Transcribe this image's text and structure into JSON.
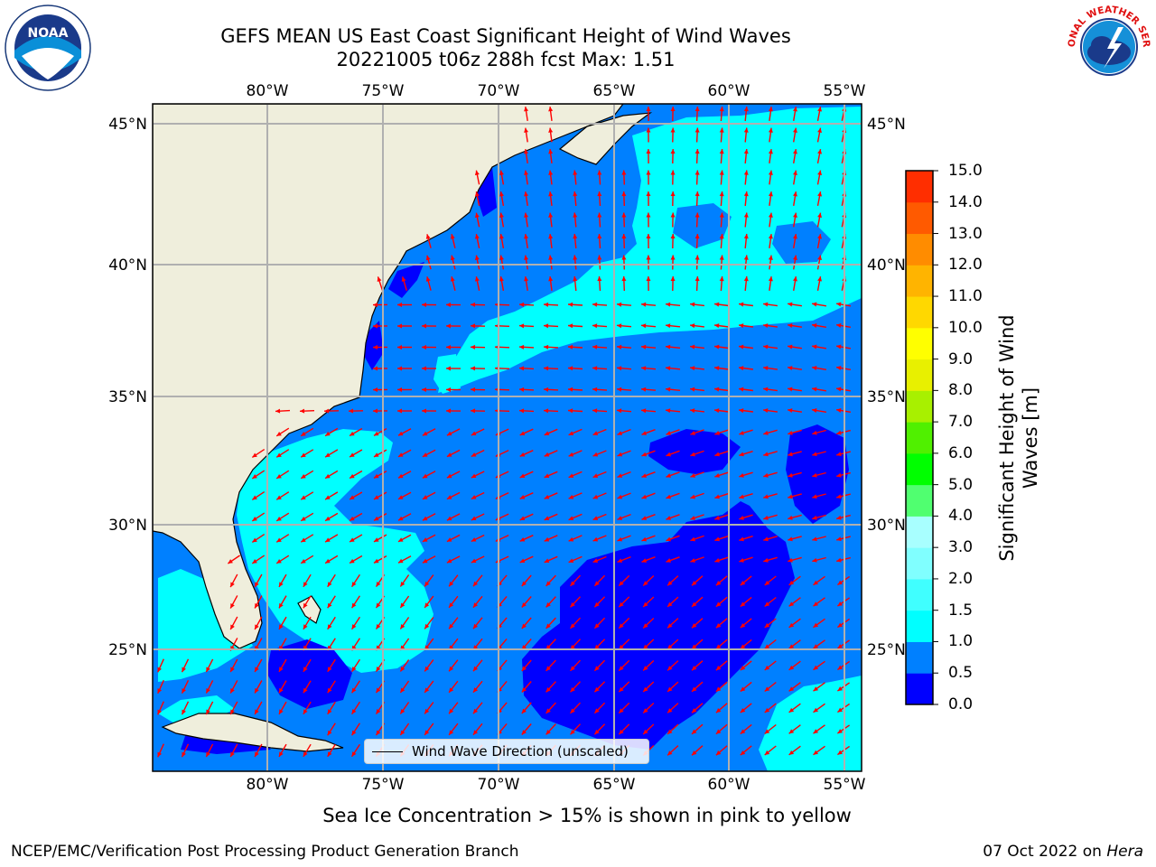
{
  "title": {
    "line1": "GEFS MEAN US East Coast Significant Height of Wind Waves",
    "line2": "20221005 t06z 288h fcst   Max: 1.51"
  },
  "map": {
    "lon_labels": [
      "80°W",
      "75°W",
      "70°W",
      "65°W",
      "60°W",
      "55°W"
    ],
    "lat_labels": [
      "45°N",
      "40°N",
      "35°N",
      "30°N",
      "25°N"
    ],
    "land_color": "#efeedc",
    "ocean_base_color": "#0080ff",
    "legend_label": "Wind Wave Direction (unscaled)",
    "arrow_color": "#ff0000"
  },
  "colorbar": {
    "title": "Significant Height of Wind Waves [m]",
    "tick_labels": [
      "0.0",
      "0.5",
      "1.0",
      "1.5",
      "2.0",
      "3.0",
      "4.0",
      "5.0",
      "6.0",
      "7.0",
      "8.0",
      "9.0",
      "10.0",
      "11.0",
      "12.0",
      "13.0",
      "14.0",
      "15.0"
    ],
    "colors": [
      "#0000ff",
      "#0080ff",
      "#00ffff",
      "#40ffff",
      "#80ffff",
      "#a8ffff",
      "#50ff70",
      "#00ff00",
      "#50f000",
      "#a8f000",
      "#e8f000",
      "#ffff00",
      "#ffd800",
      "#ffb400",
      "#ff8c00",
      "#ff5a00",
      "#ff2e00",
      "#ff0000"
    ]
  },
  "footer": {
    "subtitle": "Sea Ice Concentration > 15% is shown in pink to yellow",
    "credit_left": "NCEP/EMC/Verification Post Processing Product Generation Branch",
    "date_text": "07 Oct 2022 on ",
    "machine": "Hera"
  },
  "logos": {
    "left": "NOAA",
    "right": "NATIONAL WEATHER SERVICE"
  }
}
